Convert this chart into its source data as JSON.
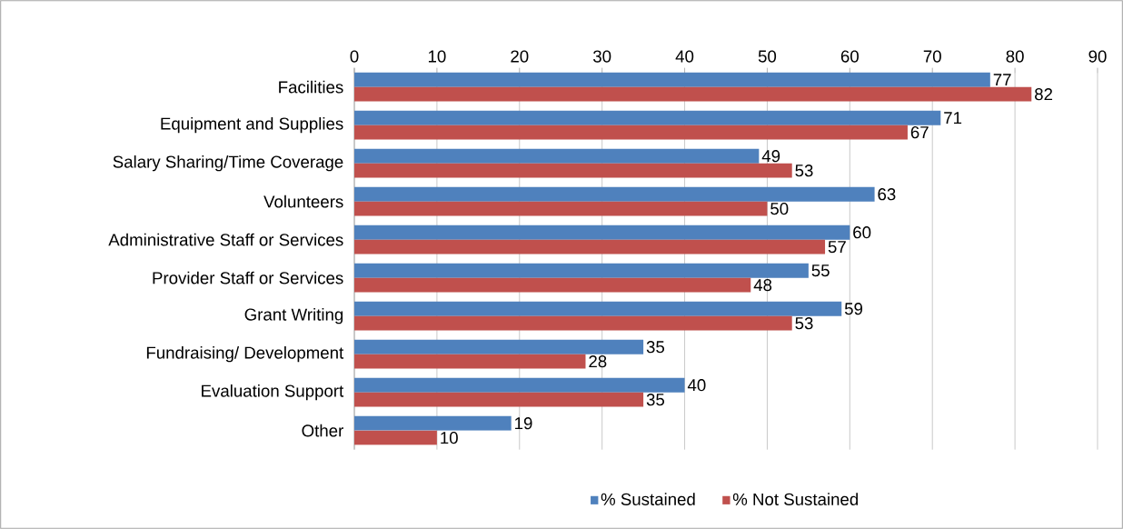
{
  "chart_data": {
    "type": "bar",
    "orientation": "horizontal",
    "categories": [
      "Facilities",
      "Equipment and Supplies",
      "Salary Sharing/Time Coverage",
      "Volunteers",
      "Administrative Staff or Services",
      "Provider Staff or Services",
      "Grant Writing",
      "Fundraising/ Development",
      "Evaluation Support",
      "Other"
    ],
    "series": [
      {
        "name": "% Sustained",
        "color": "#4f81bd",
        "values": [
          77,
          71,
          49,
          63,
          60,
          55,
          59,
          35,
          40,
          19
        ]
      },
      {
        "name": "% Not Sustained",
        "color": "#c0504d",
        "values": [
          82,
          67,
          53,
          50,
          57,
          48,
          53,
          28,
          35,
          10
        ]
      }
    ],
    "xlim": [
      0,
      90
    ],
    "xticks": [
      0,
      10,
      20,
      30,
      40,
      50,
      60,
      70,
      80,
      90
    ],
    "grid": "x",
    "legend": "bottom",
    "data_labels": true
  }
}
